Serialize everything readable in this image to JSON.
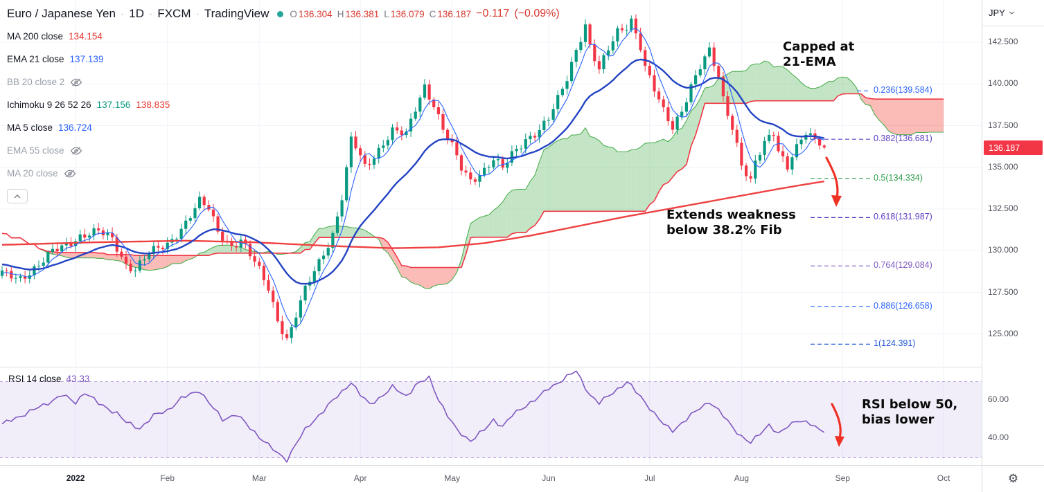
{
  "header": {
    "title_parts": [
      "Euro / Japanese Yen",
      "1D",
      "FXCM",
      "TradingView"
    ],
    "dot_color": "#26a69a",
    "ohlc": [
      [
        "O",
        "136.304"
      ],
      [
        "H",
        "136.381"
      ],
      [
        "L",
        "136.079"
      ],
      [
        "C",
        "136.187"
      ]
    ],
    "change": "−0.117",
    "change_pct": "(−0.09%)",
    "value_color": "#d8382f"
  },
  "legend": [
    {
      "label": "MA 200 close",
      "hidden": false,
      "values": [
        {
          "text": "134.154",
          "color": "#e8352e"
        }
      ]
    },
    {
      "label": "EMA 21 close",
      "hidden": false,
      "values": [
        {
          "text": "137.139",
          "color": "#2962ff"
        }
      ]
    },
    {
      "label": "BB 20 close 2",
      "hidden": true,
      "values": []
    },
    {
      "label": "Ichimoku 9 26 52 26",
      "hidden": false,
      "values": [
        {
          "text": "137.156",
          "color": "#089981"
        },
        {
          "text": "138.835",
          "color": "#e8352e"
        }
      ]
    },
    {
      "label": "MA 5 close",
      "hidden": false,
      "values": [
        {
          "text": "136.724",
          "color": "#2962ff"
        }
      ]
    },
    {
      "label": "EMA 55 close",
      "hidden": true,
      "values": []
    },
    {
      "label": "MA 20 close",
      "hidden": true,
      "values": []
    }
  ],
  "rsi_legend": {
    "label": "RSI 14 close",
    "value": "43.33",
    "value_color": "#7e57c2"
  },
  "annotations": {
    "capped": {
      "line1": "Capped at",
      "line2": "21-EMA"
    },
    "weakness": {
      "line1": "Extends weakness",
      "line2": "below 38.2% Fib"
    },
    "rsi_note": {
      "line1": "RSI below 50,",
      "line2": "bias lower"
    }
  },
  "price_axis": {
    "currency": "JPY",
    "ticks": [
      "142.500",
      "140.000",
      "137.500",
      "135.000",
      "132.500",
      "130.000",
      "127.500",
      "125.000"
    ],
    "last_price": "136.187",
    "badge_color": "#f23645"
  },
  "icons": {
    "gear": "⚙"
  },
  "chart_data": {
    "type": "candlestick",
    "symbol": "EUR/JPY",
    "interval": "1D",
    "title": "Euro / Japanese Yen, daily, FXCM",
    "visible_price_range": [
      123.0,
      145.0
    ],
    "n_candles": 180,
    "last_candle": {
      "o": 136.304,
      "h": 136.381,
      "l": 136.079,
      "c": 136.187
    },
    "close_anchors": [
      [
        -26,
        130.9
      ],
      [
        -20,
        129.8
      ],
      [
        -15,
        128.7
      ],
      [
        -10,
        129.7
      ],
      [
        -6,
        128.9
      ],
      [
        -2,
        128.5
      ],
      [
        0,
        128.6
      ],
      [
        4,
        128.4
      ],
      [
        8,
        129.1
      ],
      [
        11,
        129.9
      ],
      [
        14,
        130.4
      ],
      [
        17,
        130.9
      ],
      [
        21,
        131.1
      ],
      [
        24,
        130.7
      ],
      [
        27,
        129.2
      ],
      [
        29,
        128.9
      ],
      [
        32,
        129.8
      ],
      [
        36,
        130.4
      ],
      [
        40,
        131.7
      ],
      [
        43,
        132.9
      ],
      [
        45,
        132.5
      ],
      [
        47,
        131.2
      ],
      [
        50,
        130.3
      ],
      [
        52,
        130.6
      ],
      [
        54,
        129.7
      ],
      [
        56,
        128.8
      ],
      [
        58,
        127.8
      ],
      [
        60,
        125.9
      ],
      [
        62,
        124.7
      ],
      [
        63,
        125.3
      ],
      [
        64,
        126.1
      ],
      [
        66,
        127.6
      ],
      [
        68,
        128.8
      ],
      [
        70,
        129.9
      ],
      [
        72,
        131.0
      ],
      [
        74,
        133.2
      ],
      [
        75,
        134.8
      ],
      [
        76,
        136.6
      ],
      [
        77,
        136.2
      ],
      [
        79,
        135.0
      ],
      [
        81,
        135.7
      ],
      [
        83,
        136.5
      ],
      [
        85,
        137.2
      ],
      [
        88,
        136.9
      ],
      [
        90,
        138.5
      ],
      [
        92,
        139.9
      ],
      [
        94,
        138.8
      ],
      [
        96,
        137.3
      ],
      [
        98,
        136.2
      ],
      [
        100,
        134.9
      ],
      [
        102,
        134.2
      ],
      [
        105,
        134.9
      ],
      [
        107,
        135.5
      ],
      [
        109,
        134.9
      ],
      [
        111,
        135.7
      ],
      [
        114,
        136.7
      ],
      [
        117,
        137.3
      ],
      [
        119,
        137.9
      ],
      [
        121,
        139.0
      ],
      [
        123,
        140.3
      ],
      [
        125,
        142.1
      ],
      [
        127,
        143.6
      ],
      [
        128,
        142.3
      ],
      [
        130,
        140.8
      ],
      [
        132,
        142.0
      ],
      [
        134,
        143.1
      ],
      [
        136,
        143.5
      ],
      [
        137,
        143.9
      ],
      [
        139,
        142.3
      ],
      [
        140,
        141.0
      ],
      [
        142,
        139.6
      ],
      [
        144,
        138.3
      ],
      [
        146,
        137.4
      ],
      [
        148,
        138.5
      ],
      [
        150,
        139.9
      ],
      [
        152,
        141.0
      ],
      [
        154,
        141.9
      ],
      [
        156,
        140.4
      ],
      [
        157,
        139.1
      ],
      [
        159,
        137.5
      ],
      [
        160,
        136.4
      ],
      [
        161,
        135.2
      ],
      [
        163,
        134.1
      ],
      [
        164,
        135.2
      ],
      [
        166,
        136.4
      ],
      [
        168,
        137.1
      ],
      [
        169,
        136.1
      ],
      [
        171,
        135.1
      ],
      [
        172,
        135.8
      ],
      [
        174,
        136.6
      ],
      [
        175,
        137.0
      ],
      [
        177,
        136.5
      ],
      [
        178,
        136.3
      ],
      [
        179,
        136.187
      ]
    ],
    "ma200_anchors": [
      [
        0,
        130.35
      ],
      [
        20,
        130.5
      ],
      [
        40,
        130.6
      ],
      [
        55,
        130.5
      ],
      [
        70,
        130.3
      ],
      [
        85,
        130.15
      ],
      [
        95,
        130.2
      ],
      [
        105,
        130.45
      ],
      [
        115,
        130.9
      ],
      [
        125,
        131.45
      ],
      [
        135,
        132.0
      ],
      [
        145,
        132.5
      ],
      [
        152,
        132.85
      ],
      [
        158,
        133.15
      ],
      [
        164,
        133.45
      ],
      [
        170,
        133.75
      ],
      [
        175,
        133.98
      ],
      [
        179,
        134.154
      ]
    ],
    "ichimoku": {
      "params": [
        9,
        26,
        52,
        26
      ],
      "displacement": 26,
      "span_a_last": 137.156,
      "span_b_last": 138.835
    },
    "month_ticks": [
      {
        "label": "2022",
        "i": 16,
        "major": true
      },
      {
        "label": "Feb",
        "i": 36
      },
      {
        "label": "Mar",
        "i": 56
      },
      {
        "label": "Apr",
        "i": 78
      },
      {
        "label": "May",
        "i": 98
      },
      {
        "label": "Jun",
        "i": 119
      },
      {
        "label": "Jul",
        "i": 141
      },
      {
        "label": "Aug",
        "i": 161
      },
      {
        "label": "Sep",
        "i": 183
      },
      {
        "label": "Oct",
        "i": 205
      }
    ],
    "price_ticks": [
      142.5,
      140.0,
      137.5,
      135.0,
      132.5,
      130.0,
      127.5,
      125.0
    ],
    "fib_levels": [
      {
        "label": "0.236(139.584)",
        "price": 139.584,
        "color": "#2962ff",
        "dash_from": 1237
      },
      {
        "label": "0.382(136.681)",
        "price": 136.681,
        "color": "#5b3cc4",
        "dash_from": 1170
      },
      {
        "label": "0.5(134.334)",
        "price": 134.334,
        "color": "#2f9e4f",
        "dash_from": 1170
      },
      {
        "label": "0.618(131.987)",
        "price": 131.987,
        "color": "#5b3cc4",
        "dash_from": 1170
      },
      {
        "label": "0.764(129.084)",
        "price": 129.084,
        "color": "#7e57c2",
        "dash_from": 1170
      },
      {
        "label": "0.886(126.658)",
        "price": 126.658,
        "color": "#2962ff",
        "dash_from": 1170
      },
      {
        "label": "1(124.391)",
        "price": 124.391,
        "color": "#2157d6",
        "dash_from": 1170
      }
    ],
    "rsi": {
      "period": 14,
      "value": 43.33,
      "band": [
        30,
        70
      ],
      "ticks": [
        {
          "label": "60.00",
          "v": 60
        },
        {
          "label": "40.00",
          "v": 40
        }
      ],
      "anchors": [
        [
          0,
          47.5
        ],
        [
          4,
          52
        ],
        [
          9,
          57.5
        ],
        [
          13,
          63
        ],
        [
          16,
          59
        ],
        [
          18,
          64.5
        ],
        [
          21,
          58.5
        ],
        [
          25,
          53.5
        ],
        [
          27,
          48.5
        ],
        [
          30,
          45.5
        ],
        [
          33,
          52
        ],
        [
          36,
          55
        ],
        [
          39,
          61
        ],
        [
          43,
          65.5
        ],
        [
          45,
          59
        ],
        [
          48,
          50
        ],
        [
          51,
          53
        ],
        [
          54,
          45.5
        ],
        [
          57,
          39
        ],
        [
          60,
          32
        ],
        [
          62,
          29
        ],
        [
          64,
          37.5
        ],
        [
          66,
          44.5
        ],
        [
          69,
          52.5
        ],
        [
          71,
          57.5
        ],
        [
          74,
          64.5
        ],
        [
          76,
          70
        ],
        [
          78,
          63
        ],
        [
          80,
          58
        ],
        [
          83,
          63
        ],
        [
          85,
          67
        ],
        [
          88,
          62.5
        ],
        [
          90,
          68
        ],
        [
          93,
          72
        ],
        [
          95,
          61
        ],
        [
          97,
          52
        ],
        [
          99,
          44.5
        ],
        [
          102,
          39
        ],
        [
          105,
          44.5
        ],
        [
          107,
          50
        ],
        [
          109,
          46.5
        ],
        [
          111,
          52
        ],
        [
          114,
          57.5
        ],
        [
          117,
          62
        ],
        [
          119,
          66.5
        ],
        [
          122,
          71
        ],
        [
          125,
          75.5
        ],
        [
          128,
          63
        ],
        [
          130,
          58.5
        ],
        [
          133,
          64.5
        ],
        [
          136,
          69.5
        ],
        [
          137,
          67.5
        ],
        [
          140,
          59.5
        ],
        [
          142,
          53
        ],
        [
          144,
          47.5
        ],
        [
          146,
          44.5
        ],
        [
          149,
          50
        ],
        [
          152,
          56.5
        ],
        [
          154,
          59.5
        ],
        [
          157,
          52
        ],
        [
          159,
          46.5
        ],
        [
          161,
          41
        ],
        [
          163,
          37.5
        ],
        [
          165,
          43
        ],
        [
          167,
          47.5
        ],
        [
          169,
          42
        ],
        [
          171,
          46.5
        ],
        [
          173,
          50
        ],
        [
          176,
          47.5
        ],
        [
          179,
          43.33
        ]
      ]
    },
    "colors": {
      "up": "#089981",
      "down": "#f23645",
      "ema21": "#2343c3",
      "ma5": "#2962ff",
      "ma200": "#ef4040",
      "senkou_a": "#4caf50",
      "senkou_b": "#f23645",
      "cloud_up": "rgba(76,175,80,0.33)",
      "cloud_down": "rgba(244,67,54,0.36)",
      "rsi_line": "#7e57c2",
      "rsi_band_fill": "rgba(126,87,194,0.10)",
      "rsi_band_line": "rgba(126,87,194,0.55)",
      "grid": "#f0f3fa",
      "arrow": "#ef3124"
    }
  }
}
